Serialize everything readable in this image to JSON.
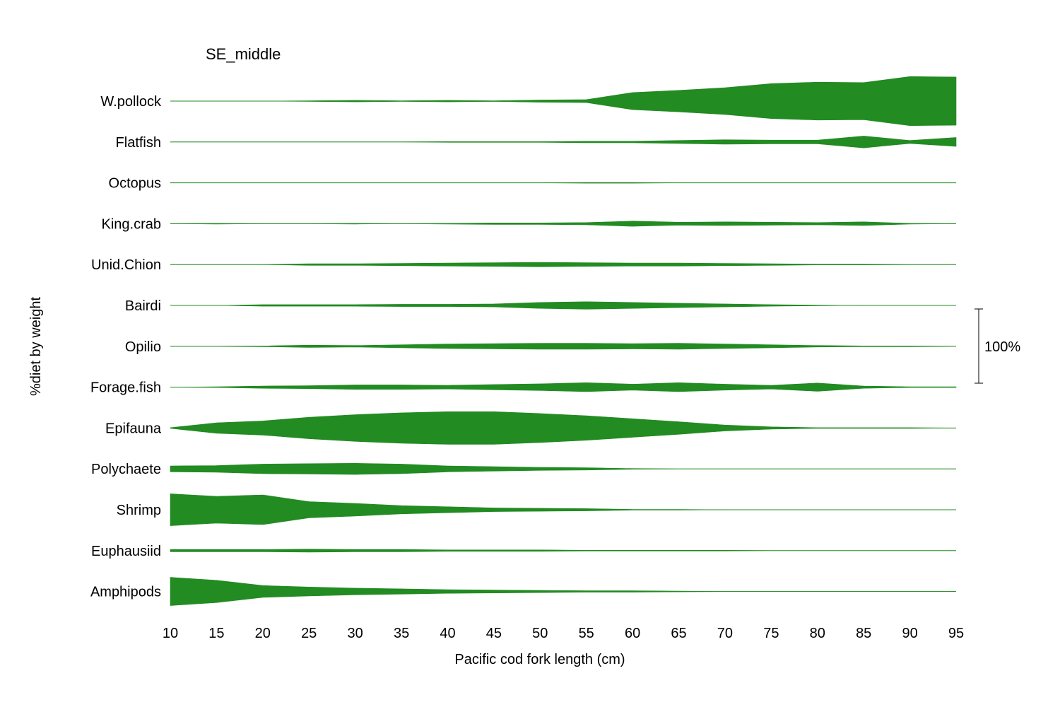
{
  "chart_data": {
    "type": "area",
    "subtype": "kite-diagram",
    "title": "SE_middle",
    "xlabel": "Pacific cod fork length (cm)",
    "ylabel": "%diet by weight",
    "scale_bar_label": "100%",
    "scale_bar_value": 100,
    "xlim": [
      10,
      95
    ],
    "x_ticks": [
      10,
      15,
      20,
      25,
      30,
      35,
      40,
      45,
      50,
      55,
      60,
      65,
      70,
      75,
      80,
      85,
      90,
      95
    ],
    "grid": false,
    "legend": "none",
    "fill_color": "#228B22",
    "x": [
      10,
      15,
      20,
      25,
      30,
      35,
      40,
      45,
      50,
      55,
      60,
      65,
      70,
      75,
      80,
      85,
      90,
      95
    ],
    "series": [
      {
        "name": "W.pollock",
        "values": [
          0,
          0,
          0,
          1,
          2,
          1,
          2,
          1,
          3,
          4,
          23,
          29,
          36,
          47,
          51,
          50,
          66,
          65
        ]
      },
      {
        "name": "Flatfish",
        "values": [
          0,
          0,
          0,
          0,
          0,
          0,
          1,
          1,
          1,
          2,
          2,
          4,
          6,
          5,
          5,
          16,
          4,
          12
        ]
      },
      {
        "name": "Octopus",
        "values": [
          0,
          0,
          0,
          0,
          0,
          0,
          0,
          0,
          0,
          1,
          1,
          0,
          0,
          0,
          0,
          0,
          0,
          0
        ]
      },
      {
        "name": "King.crab",
        "values": [
          0,
          1,
          0,
          0,
          1,
          0,
          1,
          2,
          2,
          3,
          7,
          4,
          5,
          4,
          3,
          5,
          1,
          0
        ]
      },
      {
        "name": "Unid.Chion",
        "values": [
          0,
          0,
          0,
          2,
          2,
          3,
          4,
          5,
          6,
          5,
          4,
          4,
          3,
          2,
          1,
          1,
          0,
          0
        ]
      },
      {
        "name": "Bairdi",
        "values": [
          0,
          0,
          2,
          2,
          2,
          3,
          3,
          4,
          8,
          10,
          8,
          6,
          4,
          2,
          1,
          0,
          0,
          0
        ]
      },
      {
        "name": "Opilio",
        "values": [
          0,
          0,
          1,
          3,
          2,
          4,
          6,
          7,
          8,
          8,
          7,
          8,
          6,
          4,
          2,
          1,
          1,
          0
        ]
      },
      {
        "name": "Forage.fish",
        "values": [
          0,
          1,
          3,
          4,
          6,
          6,
          5,
          7,
          9,
          12,
          8,
          12,
          8,
          5,
          11,
          3,
          1,
          1
        ]
      },
      {
        "name": "Epifauna",
        "values": [
          1,
          14,
          19,
          29,
          36,
          41,
          44,
          44,
          39,
          33,
          25,
          17,
          8,
          3,
          1,
          1,
          1,
          0
        ]
      },
      {
        "name": "Polychaete",
        "values": [
          8,
          9,
          13,
          14,
          15,
          13,
          8,
          6,
          4,
          3,
          1,
          0,
          0,
          0,
          0,
          0,
          0,
          0
        ]
      },
      {
        "name": "Shrimp",
        "values": [
          43,
          36,
          40,
          22,
          17,
          11,
          8,
          5,
          4,
          3,
          1,
          1,
          0,
          0,
          0,
          0,
          0,
          0
        ]
      },
      {
        "name": "Euphausiid",
        "values": [
          3,
          3,
          3,
          4,
          3,
          3,
          2,
          2,
          2,
          1,
          1,
          1,
          1,
          0,
          0,
          0,
          0,
          0
        ]
      },
      {
        "name": "Amphipods",
        "values": [
          38,
          30,
          16,
          12,
          9,
          7,
          5,
          4,
          3,
          2,
          2,
          1,
          0,
          0,
          0,
          0,
          0,
          0
        ]
      }
    ]
  }
}
